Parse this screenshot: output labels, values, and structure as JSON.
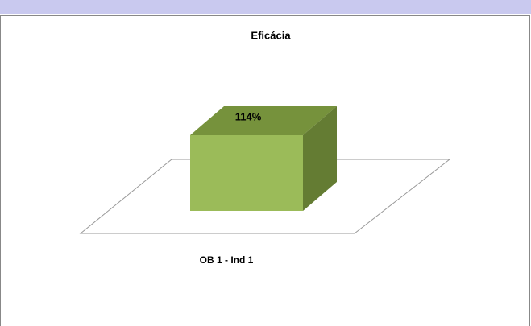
{
  "chart_data": {
    "type": "bar3d",
    "title": "Eficácia",
    "categories": [
      "OB 1 - Ind 1"
    ],
    "values": [
      114
    ],
    "value_labels": [
      "114%"
    ],
    "color": "#9bbb59"
  }
}
